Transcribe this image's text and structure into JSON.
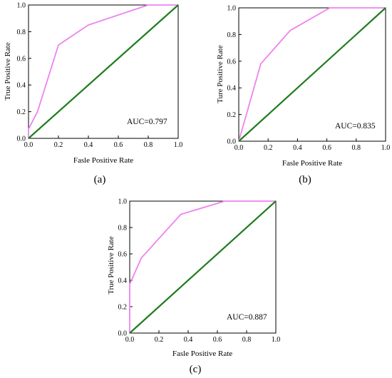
{
  "chart_data": [
    {
      "type": "line",
      "panel_label": "(a)",
      "xlabel": "Fasle Positive Rate",
      "ylabel": "True Positive Rate",
      "xlim": [
        0.0,
        1.0
      ],
      "ylim": [
        0.0,
        1.0
      ],
      "xticks": [
        "0.0",
        "0.2",
        "0.4",
        "0.6",
        "0.8",
        "1.0"
      ],
      "yticks": [
        "0.0",
        "0.2",
        "0.4",
        "0.6",
        "0.8",
        "1.0"
      ],
      "annotation": "AUC=0.797",
      "grid": false,
      "series": [
        {
          "color": "#ee82ee",
          "x": [
            0.0,
            0.0,
            0.06,
            0.2,
            0.4,
            0.8,
            1.0
          ],
          "y": [
            0.0,
            0.07,
            0.2,
            0.7,
            0.85,
            1.0,
            1.0
          ]
        },
        {
          "color": "#1e7d1e",
          "x": [
            0.0,
            1.0
          ],
          "y": [
            0.0,
            1.0
          ]
        }
      ]
    },
    {
      "type": "line",
      "panel_label": "(b)",
      "xlabel": "Fasle Positive Rate",
      "ylabel": "Ture Positive Rate",
      "xlim": [
        0.0,
        1.0
      ],
      "ylim": [
        0.0,
        1.0
      ],
      "xticks": [
        "0.0",
        "0.2",
        "0.4",
        "0.6",
        "0.8",
        "1.0"
      ],
      "yticks": [
        "0.0",
        "0.2",
        "0.4",
        "0.6",
        "0.8",
        "1.0"
      ],
      "annotation": "AUC=0.835",
      "grid": false,
      "series": [
        {
          "color": "#ee82ee",
          "x": [
            0.0,
            0.15,
            0.35,
            0.62,
            1.0
          ],
          "y": [
            0.0,
            0.58,
            0.83,
            1.0,
            1.0
          ]
        },
        {
          "color": "#1e7d1e",
          "x": [
            0.0,
            1.0
          ],
          "y": [
            0.0,
            1.0
          ]
        }
      ]
    },
    {
      "type": "line",
      "panel_label": "(c)",
      "xlabel": "Fasle Positive Rate",
      "ylabel": "True Positive Rate",
      "xlim": [
        0.0,
        1.0
      ],
      "ylim": [
        0.0,
        1.0
      ],
      "xticks": [
        "0.0",
        "0.2",
        "0.4",
        "0.6",
        "0.8",
        "1.0"
      ],
      "yticks": [
        "0.0",
        "0.2",
        "0.4",
        "0.6",
        "0.8",
        "1.0"
      ],
      "annotation": "AUC=0.887",
      "grid": false,
      "series": [
        {
          "color": "#ee82ee",
          "x": [
            0.0,
            0.0,
            0.08,
            0.35,
            0.65,
            1.0
          ],
          "y": [
            0.0,
            0.37,
            0.57,
            0.9,
            1.0,
            1.0
          ]
        },
        {
          "color": "#1e7d1e",
          "x": [
            0.0,
            1.0
          ],
          "y": [
            0.0,
            1.0
          ]
        }
      ]
    }
  ]
}
